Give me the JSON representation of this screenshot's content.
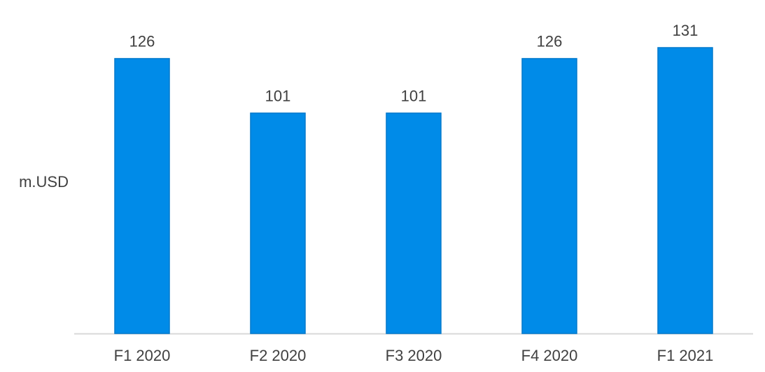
{
  "chart_data": {
    "type": "bar",
    "title": "",
    "xlabel": "",
    "ylabel": "m.USD",
    "categories": [
      "F1 2020",
      "F2 2020",
      "F3 2020",
      "F4 2020",
      "F1 2021"
    ],
    "values": [
      126,
      101,
      101,
      126,
      131
    ],
    "data_labels": [
      "126",
      "101",
      "101",
      "126",
      "131"
    ],
    "ylim": [
      0,
      131
    ],
    "grid": false,
    "legend": "none",
    "colors": {
      "bar": "#008BE8",
      "bar_edge": "#0079CC",
      "axis": "#D9D9D9",
      "text": "#404040"
    }
  }
}
